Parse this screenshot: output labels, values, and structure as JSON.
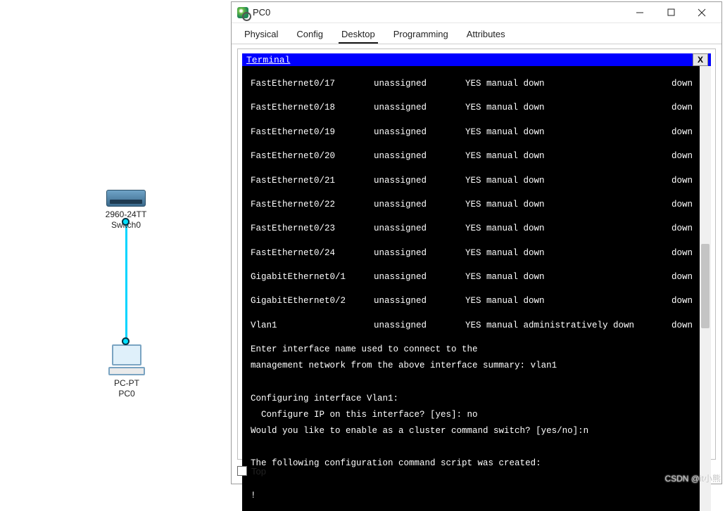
{
  "topology": {
    "switch": {
      "label": "2960-24TT\nSwitch0",
      "icon_colors": [
        "#6fa3c7",
        "#3b6a8c"
      ]
    },
    "pc": {
      "label": "PC-PT\nPC0"
    },
    "link_color": "#00d5ff",
    "led_color": "#00e0ff"
  },
  "window": {
    "title": "PC0",
    "tabs": [
      "Physical",
      "Config",
      "Desktop",
      "Programming",
      "Attributes"
    ],
    "active_tab": 2,
    "bottom_checkbox_label": "Top",
    "bottom_checkbox_checked": false
  },
  "terminal": {
    "header_title": "Terminal",
    "close_label": "X",
    "colors": {
      "bg": "#000000",
      "fg": "#ffffff",
      "header_bg": "#0000ff",
      "header_fg": "#ffffff"
    },
    "font_family": "Consolas",
    "font_size_pt": 10,
    "interfaces": [
      {
        "name": "FastEthernet0/17",
        "ip": "unassigned",
        "ok_method": "YES manual",
        "status": "down",
        "protocol": "down"
      },
      {
        "name": "FastEthernet0/18",
        "ip": "unassigned",
        "ok_method": "YES manual",
        "status": "down",
        "protocol": "down"
      },
      {
        "name": "FastEthernet0/19",
        "ip": "unassigned",
        "ok_method": "YES manual",
        "status": "down",
        "protocol": "down"
      },
      {
        "name": "FastEthernet0/20",
        "ip": "unassigned",
        "ok_method": "YES manual",
        "status": "down",
        "protocol": "down"
      },
      {
        "name": "FastEthernet0/21",
        "ip": "unassigned",
        "ok_method": "YES manual",
        "status": "down",
        "protocol": "down"
      },
      {
        "name": "FastEthernet0/22",
        "ip": "unassigned",
        "ok_method": "YES manual",
        "status": "down",
        "protocol": "down"
      },
      {
        "name": "FastEthernet0/23",
        "ip": "unassigned",
        "ok_method": "YES manual",
        "status": "down",
        "protocol": "down"
      },
      {
        "name": "FastEthernet0/24",
        "ip": "unassigned",
        "ok_method": "YES manual",
        "status": "down",
        "protocol": "down"
      },
      {
        "name": "GigabitEthernet0/1",
        "ip": "unassigned",
        "ok_method": "YES manual",
        "status": "down",
        "protocol": "down"
      },
      {
        "name": "GigabitEthernet0/2",
        "ip": "unassigned",
        "ok_method": "YES manual",
        "status": "down",
        "protocol": "down"
      },
      {
        "name": "Vlan1",
        "ip": "unassigned",
        "ok_method": "YES manual",
        "status": "administratively down",
        "protocol": "down"
      }
    ],
    "dialog_lines": [
      "Enter interface name used to connect to the",
      "management network from the above interface summary: vlan1",
      "",
      "Configuring interface Vlan1:",
      "  Configure IP on this interface? [yes]: no",
      "Would you like to enable as a cluster command switch? [yes/no]:n",
      "",
      "The following configuration command script was created:",
      "",
      "!"
    ]
  },
  "watermark": "CSDN @it小熊"
}
